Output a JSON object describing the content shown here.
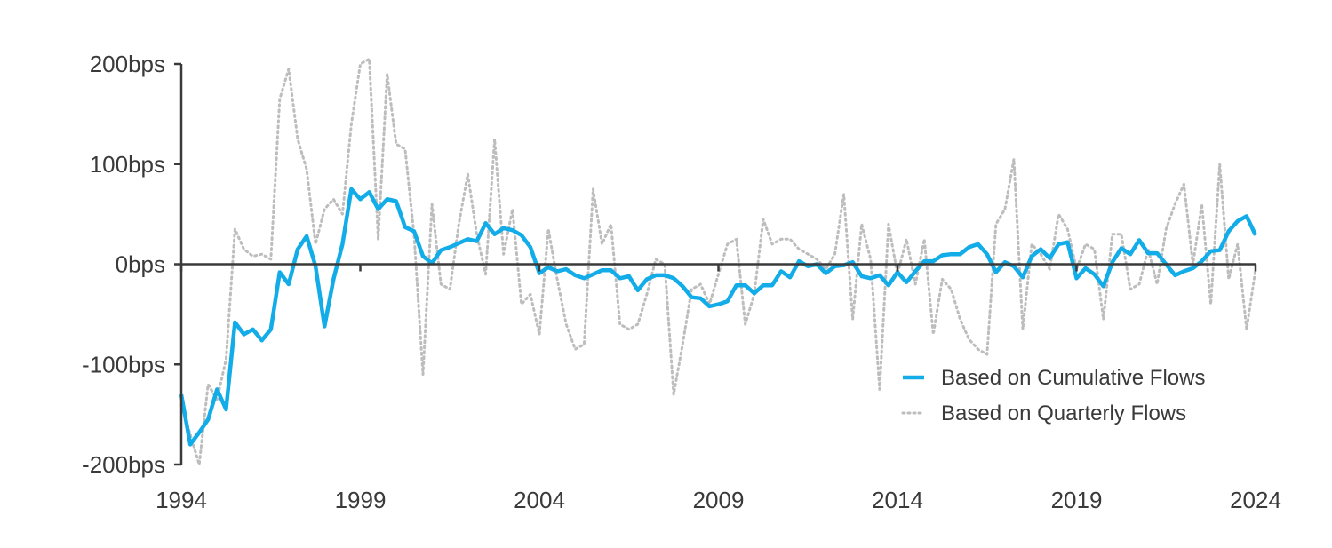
{
  "chart_data": {
    "type": "line",
    "title": "",
    "xlabel": "",
    "ylabel": "",
    "xlim": [
      1994,
      2024
    ],
    "ylim": [
      -200,
      200
    ],
    "x_ticks": [
      1994,
      1999,
      2004,
      2009,
      2014,
      2019,
      2024
    ],
    "x_tick_labels": [
      "1994",
      "1999",
      "2004",
      "2009",
      "2014",
      "2019",
      "2024"
    ],
    "y_ticks": [
      200,
      100,
      0,
      -100,
      -200
    ],
    "y_tick_labels": [
      "200bps",
      "100bps",
      "0bps",
      "-100bps",
      "-200bps"
    ],
    "grid": false,
    "legend_position": "bottom-right",
    "series": [
      {
        "name": "Based on Cumulative Flows",
        "color": "#12ace8",
        "style": "solid",
        "x": [
          1994.0,
          1994.25,
          1994.5,
          1994.75,
          1995.0,
          1995.25,
          1995.5,
          1995.75,
          1996.0,
          1996.25,
          1996.5,
          1996.75,
          1997.0,
          1997.25,
          1997.5,
          1997.75,
          1998.0,
          1998.25,
          1998.5,
          1998.75,
          1999.0,
          1999.25,
          1999.5,
          1999.75,
          2000.0,
          2000.25,
          2000.5,
          2000.75,
          2001.0,
          2001.25,
          2001.5,
          2001.75,
          2002.0,
          2002.25,
          2002.5,
          2002.75,
          2003.0,
          2003.25,
          2003.5,
          2003.75,
          2004.0,
          2004.25,
          2004.5,
          2004.75,
          2005.0,
          2005.25,
          2005.5,
          2005.75,
          2006.0,
          2006.25,
          2006.5,
          2006.75,
          2007.0,
          2007.25,
          2007.5,
          2007.75,
          2008.0,
          2008.25,
          2008.5,
          2008.75,
          2009.0,
          2009.25,
          2009.5,
          2009.75,
          2010.0,
          2010.25,
          2010.5,
          2010.75,
          2011.0,
          2011.25,
          2011.5,
          2011.75,
          2012.0,
          2012.25,
          2012.5,
          2012.75,
          2013.0,
          2013.25,
          2013.5,
          2013.75,
          2014.0,
          2014.25,
          2014.5,
          2014.75,
          2015.0,
          2015.25,
          2015.5,
          2015.75,
          2016.0,
          2016.25,
          2016.5,
          2016.75,
          2017.0,
          2017.25,
          2017.5,
          2017.75,
          2018.0,
          2018.25,
          2018.5,
          2018.75,
          2019.0,
          2019.25,
          2019.5,
          2019.75,
          2020.0,
          2020.25,
          2020.5,
          2020.75,
          2021.0,
          2021.25,
          2021.5,
          2021.75,
          2022.0,
          2022.25,
          2022.5,
          2022.75,
          2023.0,
          2023.25,
          2023.5,
          2023.75,
          2024.0
        ],
        "values": [
          -130,
          -180,
          -168,
          -155,
          -125,
          -145,
          -58,
          -70,
          -65,
          -76,
          -65,
          -8,
          -20,
          15,
          28,
          -2,
          -62,
          -15,
          20,
          75,
          65,
          72,
          55,
          65,
          63,
          37,
          33,
          8,
          1,
          14,
          17,
          21,
          25,
          23,
          41,
          30,
          36,
          34,
          29,
          17,
          -9,
          -3,
          -7,
          -5,
          -11,
          -14,
          -10,
          -6,
          -6,
          -14,
          -12,
          -26,
          -15,
          -11,
          -11,
          -14,
          -22,
          -33,
          -34,
          -42,
          -40,
          -37,
          -21,
          -21,
          -29,
          -21,
          -21,
          -7,
          -13,
          3,
          -2,
          0,
          -9,
          -2,
          -1,
          2,
          -12,
          -14,
          -11,
          -21,
          -8,
          -18,
          -7,
          3,
          3,
          9,
          10,
          10,
          17,
          20,
          10,
          -8,
          2,
          -2,
          -13,
          8,
          15,
          6,
          20,
          22,
          -14,
          -4,
          -10,
          -22,
          2,
          16,
          10,
          24,
          11,
          11,
          0,
          -11,
          -7,
          -4,
          3,
          13,
          14,
          33,
          43,
          48,
          29
        ]
      },
      {
        "name": "Based on Quarterly Flows",
        "color": "#bdbdbd",
        "style": "dotted",
        "x": [
          1994.0,
          1994.25,
          1994.5,
          1994.75,
          1995.0,
          1995.25,
          1995.5,
          1995.75,
          1996.0,
          1996.25,
          1996.5,
          1996.75,
          1997.0,
          1997.25,
          1997.5,
          1997.75,
          1998.0,
          1998.25,
          1998.5,
          1998.75,
          1999.0,
          1999.25,
          1999.5,
          1999.75,
          2000.0,
          2000.25,
          2000.5,
          2000.75,
          2001.0,
          2001.25,
          2001.5,
          2001.75,
          2002.0,
          2002.25,
          2002.5,
          2002.75,
          2003.0,
          2003.25,
          2003.5,
          2003.75,
          2004.0,
          2004.25,
          2004.5,
          2004.75,
          2005.0,
          2005.25,
          2005.5,
          2005.75,
          2006.0,
          2006.25,
          2006.5,
          2006.75,
          2007.0,
          2007.25,
          2007.5,
          2007.75,
          2008.0,
          2008.25,
          2008.5,
          2008.75,
          2009.0,
          2009.25,
          2009.5,
          2009.75,
          2010.0,
          2010.25,
          2010.5,
          2010.75,
          2011.0,
          2011.25,
          2011.5,
          2011.75,
          2012.0,
          2012.25,
          2012.5,
          2012.75,
          2013.0,
          2013.25,
          2013.5,
          2013.75,
          2014.0,
          2014.25,
          2014.5,
          2014.75,
          2015.0,
          2015.25,
          2015.5,
          2015.75,
          2016.0,
          2016.25,
          2016.5,
          2016.75,
          2017.0,
          2017.25,
          2017.5,
          2017.75,
          2018.0,
          2018.25,
          2018.5,
          2018.75,
          2019.0,
          2019.25,
          2019.5,
          2019.75,
          2020.0,
          2020.25,
          2020.5,
          2020.75,
          2021.0,
          2021.25,
          2021.5,
          2021.75,
          2022.0,
          2022.25,
          2022.5,
          2022.75,
          2023.0,
          2023.25,
          2023.5,
          2023.75,
          2024.0
        ],
        "values": [
          -140,
          -170,
          -200,
          -120,
          -135,
          -95,
          35,
          15,
          8,
          10,
          5,
          165,
          195,
          125,
          95,
          20,
          55,
          65,
          50,
          140,
          200,
          205,
          25,
          190,
          120,
          115,
          30,
          -110,
          60,
          -20,
          -25,
          40,
          90,
          30,
          -10,
          125,
          10,
          55,
          -40,
          -30,
          -70,
          35,
          -15,
          -60,
          -85,
          -80,
          75,
          20,
          40,
          -60,
          -65,
          -60,
          -30,
          5,
          0,
          -130,
          -80,
          -25,
          -20,
          -40,
          -10,
          20,
          25,
          -60,
          -30,
          45,
          20,
          25,
          25,
          15,
          10,
          5,
          -5,
          10,
          70,
          -55,
          40,
          5,
          -125,
          40,
          -10,
          25,
          -20,
          25,
          -70,
          -15,
          -25,
          -55,
          -75,
          -85,
          -90,
          40,
          55,
          105,
          -65,
          20,
          10,
          -5,
          50,
          35,
          -5,
          20,
          15,
          -55,
          30,
          30,
          -25,
          -20,
          15,
          -20,
          35,
          60,
          80,
          0,
          60,
          -40,
          100,
          -15,
          20,
          -65,
          -5
        ]
      }
    ]
  }
}
